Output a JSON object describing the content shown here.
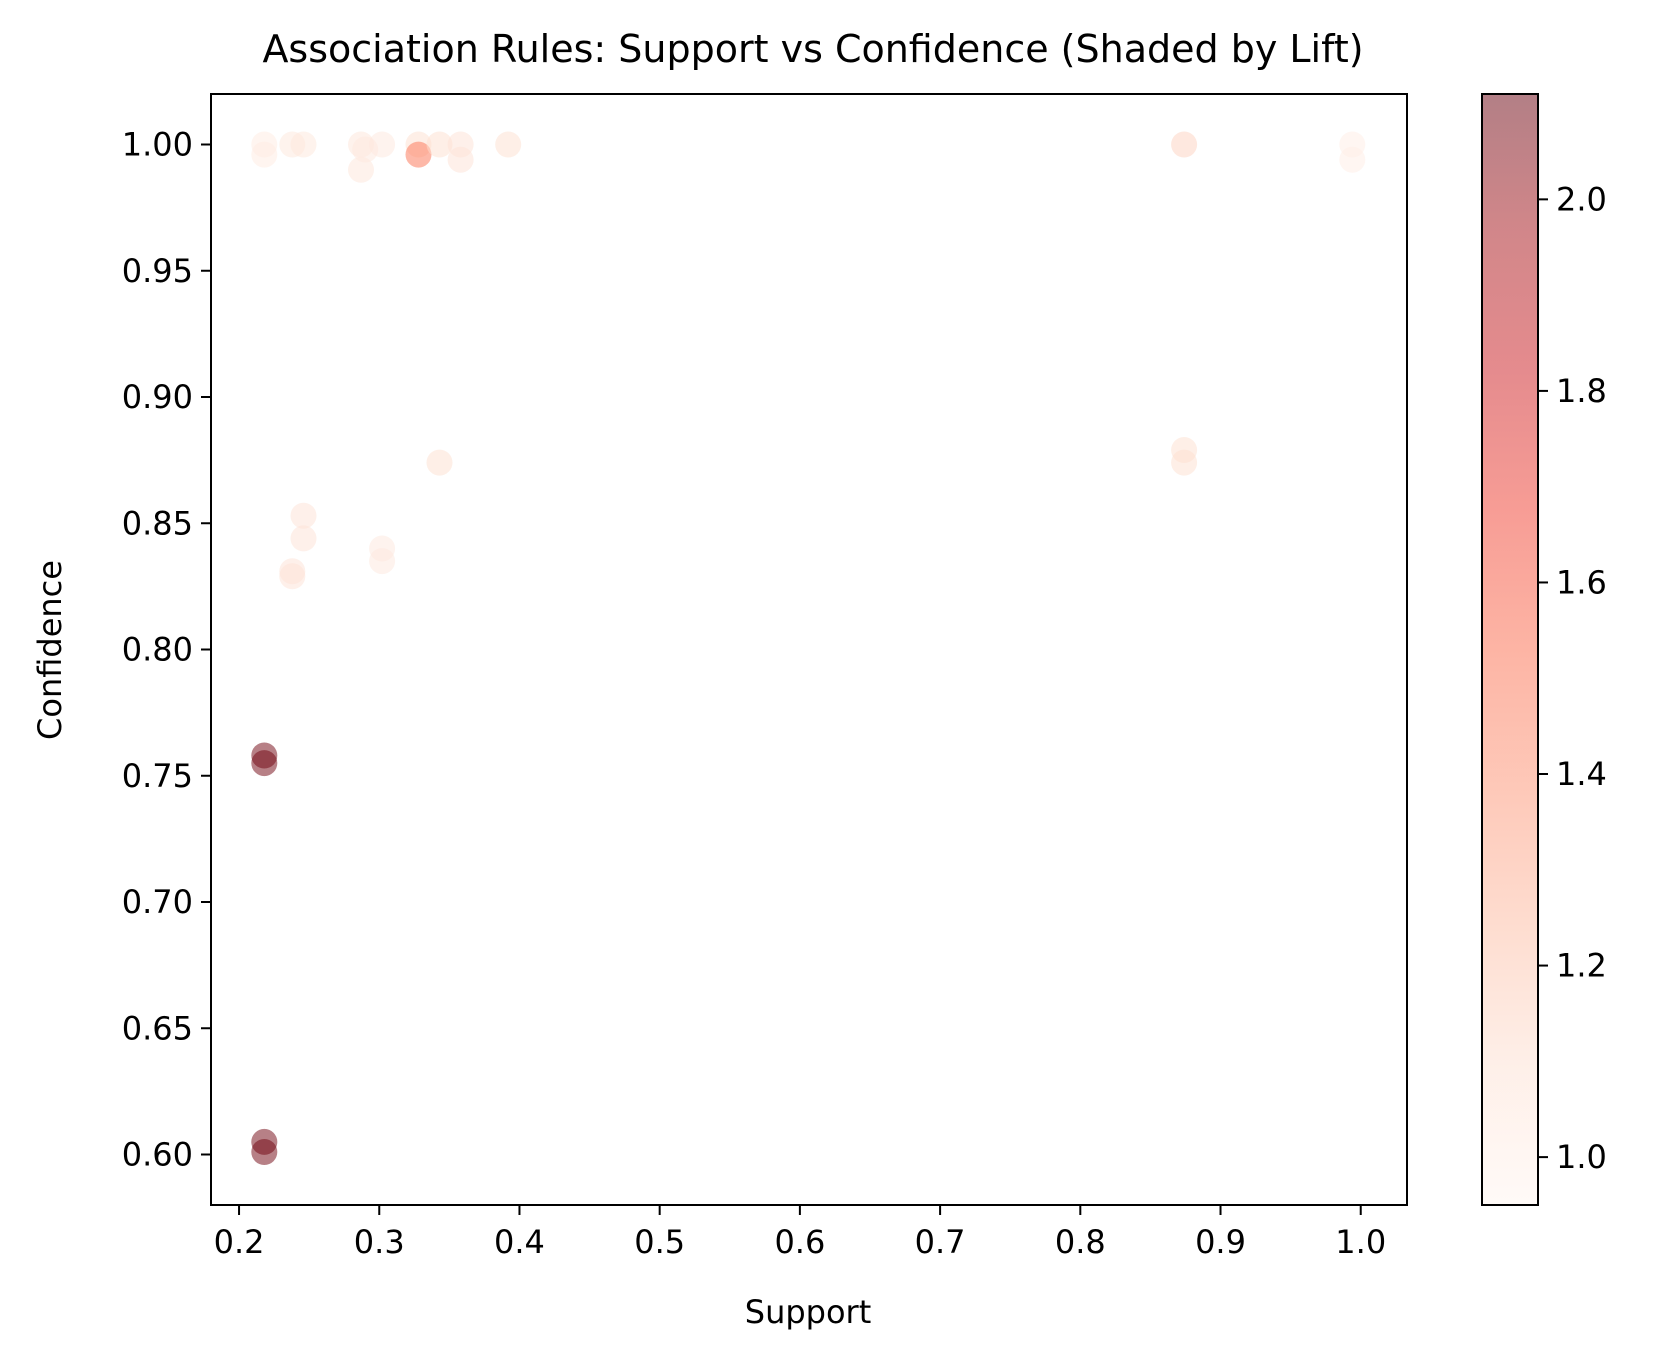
{
  "chart_data": {
    "type": "scatter",
    "title": "Association Rules: Support vs Confidence (Shaded by Lift)",
    "xlabel": "Support",
    "ylabel": "Confidence",
    "xlim": [
      0.18,
      1.033
    ],
    "ylim": [
      0.58,
      1.02
    ],
    "xticks": [
      "0.2",
      "0.3",
      "0.4",
      "0.5",
      "0.6",
      "0.7",
      "0.8",
      "0.9",
      "1.0"
    ],
    "yticks": [
      "0.60",
      "0.65",
      "0.70",
      "0.75",
      "0.80",
      "0.85",
      "0.90",
      "0.95",
      "1.00"
    ],
    "grid": false,
    "colorbar": {
      "colormap": "Reds",
      "range": [
        0.95,
        2.11
      ],
      "ticks": [
        "1.0",
        "1.2",
        "1.4",
        "1.6",
        "1.8",
        "2.0"
      ],
      "colors": [
        "#fff5f0",
        "#fee0d2",
        "#fcbba1",
        "#fc9272",
        "#fb6a4a",
        "#ef3b2c",
        "#cb181d",
        "#a50f15",
        "#67000d"
      ]
    },
    "marker_alpha": 0.5,
    "points": [
      {
        "support": 0.218,
        "confidence": 1.0,
        "lift": 1.02
      },
      {
        "support": 0.218,
        "confidence": 0.996,
        "lift": 1.02
      },
      {
        "support": 0.238,
        "confidence": 1.0,
        "lift": 1.05
      },
      {
        "support": 0.246,
        "confidence": 1.0,
        "lift": 1.05
      },
      {
        "support": 0.287,
        "confidence": 1.0,
        "lift": 1.06
      },
      {
        "support": 0.287,
        "confidence": 0.99,
        "lift": 1.06
      },
      {
        "support": 0.29,
        "confidence": 0.998,
        "lift": 1.04
      },
      {
        "support": 0.302,
        "confidence": 1.0,
        "lift": 1.04
      },
      {
        "support": 0.328,
        "confidence": 1.0,
        "lift": 1.1
      },
      {
        "support": 0.328,
        "confidence": 0.996,
        "lift": 1.5
      },
      {
        "support": 0.343,
        "confidence": 1.0,
        "lift": 1.1
      },
      {
        "support": 0.358,
        "confidence": 1.0,
        "lift": 1.08
      },
      {
        "support": 0.358,
        "confidence": 0.994,
        "lift": 1.08
      },
      {
        "support": 0.392,
        "confidence": 1.0,
        "lift": 1.1
      },
      {
        "support": 0.874,
        "confidence": 1.0,
        "lift": 1.15
      },
      {
        "support": 0.994,
        "confidence": 1.0,
        "lift": 1.0
      },
      {
        "support": 0.994,
        "confidence": 0.994,
        "lift": 1.0
      },
      {
        "support": 0.874,
        "confidence": 0.879,
        "lift": 1.1
      },
      {
        "support": 0.874,
        "confidence": 0.874,
        "lift": 1.1
      },
      {
        "support": 0.343,
        "confidence": 0.874,
        "lift": 1.1
      },
      {
        "support": 0.246,
        "confidence": 0.853,
        "lift": 1.08
      },
      {
        "support": 0.246,
        "confidence": 0.844,
        "lift": 1.08
      },
      {
        "support": 0.238,
        "confidence": 0.831,
        "lift": 1.08
      },
      {
        "support": 0.238,
        "confidence": 0.829,
        "lift": 1.08
      },
      {
        "support": 0.302,
        "confidence": 0.84,
        "lift": 1.04
      },
      {
        "support": 0.302,
        "confidence": 0.835,
        "lift": 1.04
      },
      {
        "support": 0.218,
        "confidence": 0.758,
        "lift": 2.09
      },
      {
        "support": 0.218,
        "confidence": 0.755,
        "lift": 2.09
      },
      {
        "support": 0.218,
        "confidence": 0.605,
        "lift": 2.09
      },
      {
        "support": 0.218,
        "confidence": 0.601,
        "lift": 2.09
      }
    ]
  }
}
